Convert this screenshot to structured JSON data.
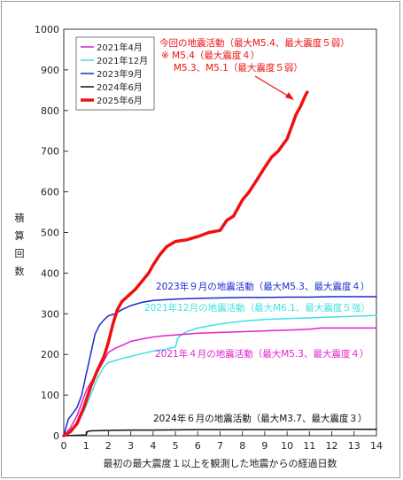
{
  "chart_data": {
    "type": "line",
    "xlabel": "最初の最大震度１以上を観測した地震からの経過日数",
    "ylabel": [
      "積",
      "算",
      "回",
      "数"
    ],
    "xlim": [
      0,
      14
    ],
    "ylim": [
      0,
      1000
    ],
    "xticks": [
      0,
      1,
      2,
      3,
      4,
      5,
      6,
      7,
      8,
      9,
      10,
      11,
      12,
      13,
      14
    ],
    "yticks": [
      0,
      100,
      200,
      300,
      400,
      500,
      600,
      700,
      800,
      900,
      1000
    ],
    "grid": false,
    "legend_placement": "top-left",
    "series": [
      {
        "name": "2021年4月",
        "color": "#e020d0",
        "width": 1.5,
        "x": [
          0,
          0.3,
          0.6,
          0.8,
          1.0,
          1.2,
          1.4,
          1.6,
          1.8,
          2.0,
          2.3,
          2.6,
          3.0,
          3.5,
          4.0,
          4.5,
          5.0,
          6.0,
          7.0,
          8.0,
          9.0,
          10.0,
          11.0,
          11.5,
          12.0,
          13.0,
          14.0
        ],
        "y": [
          0,
          20,
          50,
          80,
          110,
          130,
          145,
          165,
          185,
          205,
          215,
          222,
          232,
          238,
          243,
          246,
          248,
          252,
          254,
          256,
          258,
          260,
          262,
          265,
          265,
          265,
          265
        ]
      },
      {
        "name": "2021年12月",
        "color": "#40e0e0",
        "width": 1.5,
        "x": [
          0,
          0.3,
          0.6,
          0.9,
          1.2,
          1.5,
          1.8,
          2.0,
          2.3,
          2.6,
          3.0,
          3.5,
          4.0,
          4.5,
          5.0,
          5.1,
          5.3,
          5.6,
          6.0,
          7.0,
          8.0,
          9.0,
          10.0,
          11.0,
          12.0,
          13.0,
          14.0
        ],
        "y": [
          0,
          15,
          30,
          60,
          100,
          140,
          170,
          180,
          185,
          190,
          195,
          202,
          208,
          212,
          218,
          240,
          250,
          258,
          265,
          275,
          282,
          286,
          288,
          290,
          292,
          294,
          296
        ]
      },
      {
        "name": "2023年9月",
        "color": "#1a2ad0",
        "width": 1.5,
        "x": [
          0,
          0.2,
          0.4,
          0.6,
          0.8,
          1.0,
          1.2,
          1.4,
          1.6,
          1.8,
          2.0,
          2.3,
          2.6,
          3.0,
          3.5,
          4.0,
          5.0,
          6.0,
          7.0,
          8.0,
          9.0,
          10.0,
          11.0,
          12.0,
          13.0,
          14.0
        ],
        "y": [
          0,
          40,
          55,
          70,
          100,
          150,
          200,
          250,
          272,
          285,
          295,
          300,
          310,
          320,
          328,
          333,
          336,
          338,
          339,
          340,
          340,
          341,
          341,
          342,
          342,
          342
        ]
      },
      {
        "name": "2024年6月",
        "color": "#111111",
        "width": 1.5,
        "x": [
          0,
          1.0,
          1.05,
          1.2,
          2.0,
          3.0,
          4.0,
          6.0,
          8.0,
          10.0,
          12.0,
          14.0
        ],
        "y": [
          0,
          2,
          10,
          12,
          13,
          14,
          14,
          15,
          15,
          15,
          16,
          16
        ]
      },
      {
        "name": "2025年6月",
        "color": "#ee1111",
        "width": 3.5,
        "x": [
          0,
          0.3,
          0.6,
          0.9,
          1.2,
          1.5,
          1.8,
          2.0,
          2.2,
          2.4,
          2.6,
          2.8,
          3.0,
          3.2,
          3.5,
          3.8,
          4.0,
          4.3,
          4.6,
          5.0,
          5.5,
          6.0,
          6.5,
          7.0,
          7.3,
          7.6,
          8.0,
          8.3,
          8.6,
          9.0,
          9.3,
          9.6,
          10.0,
          10.2,
          10.4,
          10.6,
          10.8,
          10.9
        ],
        "y": [
          0,
          10,
          30,
          70,
          120,
          160,
          195,
          230,
          275,
          310,
          330,
          340,
          350,
          360,
          380,
          400,
          420,
          445,
          465,
          478,
          482,
          490,
          500,
          505,
          530,
          540,
          580,
          600,
          625,
          660,
          685,
          700,
          730,
          760,
          790,
          810,
          835,
          845
        ]
      }
    ],
    "annotations": [
      {
        "lines": [
          "今回の地震活動（最大M5.4、最大震度５弱）",
          "※ M5.4（最大震度４）",
          "　 M5.3、M5.1（最大震度５弱）"
        ],
        "color": "#ee1111"
      },
      {
        "text": "2023年９月の地震活動（最大M5.3、最大震度４）",
        "color": "#1a2ad0"
      },
      {
        "text": "2021年12月の地震活動（最大M6.1、最大震度５強）",
        "color": "#40e0e0"
      },
      {
        "text": "2021年４月の地震活動（最大M5.3、最大震度４）",
        "color": "#e020d0"
      },
      {
        "text": "2024年６月の地震活動（最大M3.7、最大震度３）",
        "color": "#111111"
      }
    ]
  }
}
